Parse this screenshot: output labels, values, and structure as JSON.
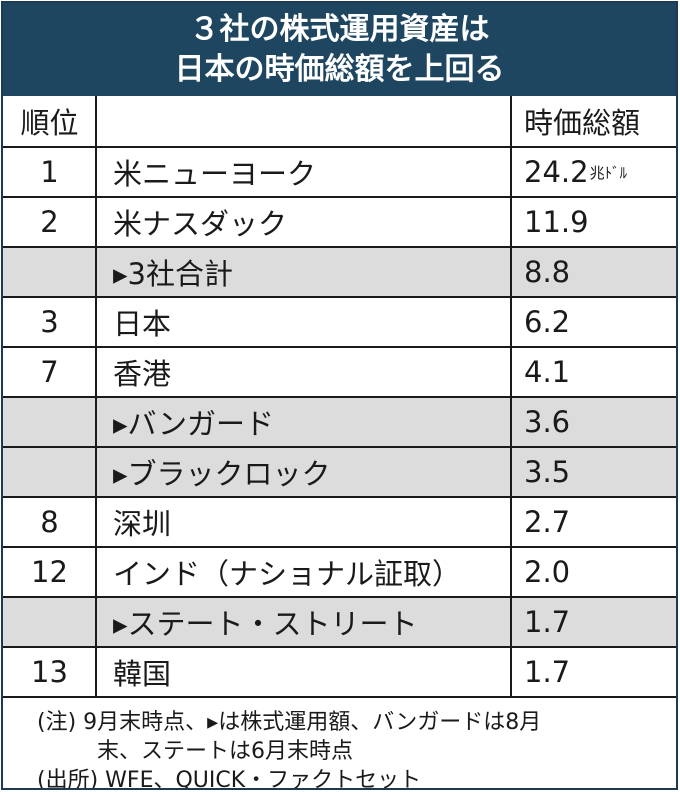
{
  "title_lines": [
    "３社の株式運用資産は",
    "日本の時価総額を上回る"
  ],
  "header": {
    "rank": "順位",
    "name": "",
    "value": "時価総額"
  },
  "unit_label": "兆ﾄﾞﾙ",
  "rows": [
    {
      "rank": "1",
      "name": "米ニューヨーク",
      "value": "24.2",
      "shaded": false
    },
    {
      "rank": "2",
      "name": "米ナスダック",
      "value": "11.9",
      "shaded": false
    },
    {
      "rank": "",
      "name": "▸3社合計",
      "value": "8.8",
      "shaded": true
    },
    {
      "rank": "3",
      "name": "日本",
      "value": "6.2",
      "shaded": false
    },
    {
      "rank": "7",
      "name": "香港",
      "value": "4.1",
      "shaded": false
    },
    {
      "rank": "",
      "name": "▸バンガード",
      "value": "3.6",
      "shaded": true
    },
    {
      "rank": "",
      "name": "▸ブラックロック",
      "value": "3.5",
      "shaded": true
    },
    {
      "rank": "8",
      "name": "深圳",
      "value": "2.7",
      "shaded": false
    },
    {
      "rank": "12",
      "name": "インド（ナショナル証取）",
      "value": "2.0",
      "shaded": false
    },
    {
      "rank": "",
      "name": "▸ステート・ストリート",
      "value": "1.7",
      "shaded": true
    },
    {
      "rank": "13",
      "name": "韓国",
      "value": "1.7",
      "shaded": false
    }
  ],
  "notes": {
    "line1": "(注) 9月末時点、▸は株式運用額、バンガードは8月",
    "line2": "末、ステートは6月末時点",
    "line3": "(出所) WFE、QUICK・ファクトセット"
  },
  "colors": {
    "title_bg": "#1f4661",
    "shaded_row": "#dcdcdc",
    "border": "#1a1a1a"
  },
  "chart_data": {
    "type": "table",
    "title": "３社の株式運用資産は日本の時価総額を上回る",
    "columns": [
      "順位",
      "",
      "時価総額"
    ],
    "unit": "兆ﾄﾞﾙ",
    "categories": [
      "米ニューヨーク",
      "米ナスダック",
      "▸3社合計",
      "日本",
      "香港",
      "▸バンガード",
      "▸ブラックロック",
      "深圳",
      "インド（ナショナル証取）",
      "▸ステート・ストリート",
      "韓国"
    ],
    "ranks": [
      "1",
      "2",
      "",
      "3",
      "7",
      "",
      "",
      "8",
      "12",
      "",
      "13"
    ],
    "values": [
      24.2,
      11.9,
      8.8,
      6.2,
      4.1,
      3.6,
      3.5,
      2.7,
      2.0,
      1.7,
      1.7
    ]
  }
}
